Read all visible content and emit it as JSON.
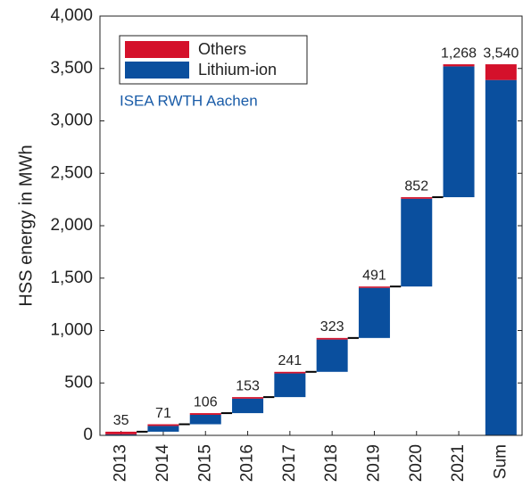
{
  "chart_data": {
    "type": "waterfall",
    "ylabel": "HSS energy in MWh",
    "annotation": "ISEA RWTH Aachen",
    "categories": [
      "2013",
      "2014",
      "2015",
      "2016",
      "2017",
      "2018",
      "2019",
      "2020",
      "2021",
      "Sum"
    ],
    "values": [
      35,
      71,
      106,
      153,
      241,
      323,
      491,
      852,
      1268,
      3540
    ],
    "value_labels": [
      "35",
      "71",
      "106",
      "153",
      "241",
      "323",
      "491",
      "852",
      "1,268",
      "3,540"
    ],
    "series": [
      {
        "name": "Lithium-ion",
        "color": "#0a4f9e",
        "values": [
          10,
          55,
          90,
          138,
          226,
          308,
          478,
          837,
          1248,
          3390
        ]
      },
      {
        "name": "Others",
        "color": "#d4112b",
        "values": [
          25,
          16,
          16,
          15,
          15,
          15,
          13,
          15,
          20,
          150
        ]
      }
    ],
    "ylim": [
      0,
      4000
    ],
    "yticks": [
      0,
      500,
      {
        "value": 1000,
        "label": "1,000"
      },
      {
        "value": 1500,
        "label": "1,500"
      },
      {
        "value": 2000,
        "label": "2,000"
      },
      {
        "value": 2500,
        "label": "2,500"
      },
      {
        "value": 3000,
        "label": "3,000"
      },
      {
        "value": 3500,
        "label": "3,500"
      },
      {
        "value": 4000,
        "label": "4,000"
      }
    ],
    "grid": false,
    "legend": "upper left"
  }
}
